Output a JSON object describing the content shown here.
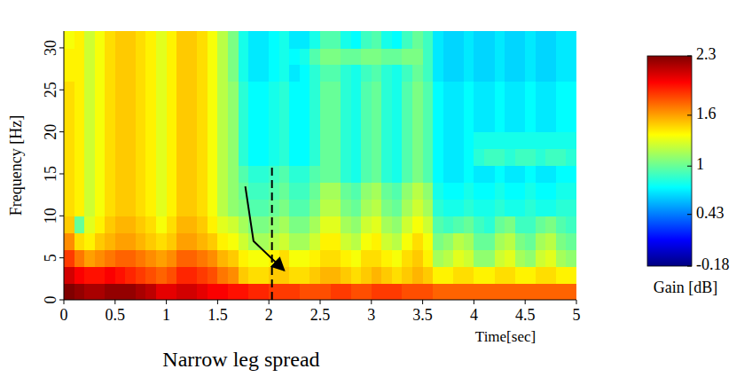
{
  "chart_data": {
    "type": "heatmap",
    "title": "Narrow leg spread",
    "x_label": "Time[sec]",
    "y_label": "Frequency [Hz]",
    "xlim": [
      0,
      5
    ],
    "ylim": [
      0,
      32
    ],
    "xticks": [
      0,
      0.5,
      1,
      1.5,
      2,
      2.5,
      3,
      3.5,
      4,
      4.5,
      5
    ],
    "yticks": [
      0,
      5,
      10,
      15,
      20,
      25,
      30
    ],
    "x": [
      0.05,
      0.15,
      0.25,
      0.35,
      0.45,
      0.55,
      0.65,
      0.75,
      0.85,
      0.95,
      1.05,
      1.15,
      1.25,
      1.35,
      1.45,
      1.55,
      1.65,
      1.75,
      1.85,
      1.95,
      2.05,
      2.15,
      2.25,
      2.35,
      2.45,
      2.55,
      2.65,
      2.75,
      2.85,
      2.95,
      3.05,
      3.15,
      3.25,
      3.35,
      3.45,
      3.55,
      3.65,
      3.75,
      3.85,
      3.95,
      4.05,
      4.15,
      4.25,
      4.35,
      4.45,
      4.55,
      4.65,
      4.75,
      4.85,
      4.95
    ],
    "y": [
      1,
      3,
      5,
      7,
      9,
      11,
      13,
      15,
      17,
      19,
      21,
      23,
      25,
      27,
      29,
      31
    ],
    "cells": [
      [
        2.3,
        2.25,
        2.2,
        2.2,
        2.25,
        2.25,
        2.25,
        2.2,
        2.15,
        2.05,
        2.05,
        2.1,
        2.1,
        2.05,
        2.0,
        2.0,
        1.95,
        1.95,
        1.9,
        1.9,
        1.85,
        1.85,
        1.85,
        1.8,
        1.8,
        1.8,
        1.85,
        1.85,
        1.8,
        1.8,
        1.85,
        1.85,
        1.85,
        1.8,
        1.8,
        1.8,
        1.75,
        1.75,
        1.75,
        1.75,
        1.75,
        1.75,
        1.75,
        1.75,
        1.75,
        1.75,
        1.75,
        1.75,
        1.75,
        1.75
      ],
      [
        2.1,
        2.0,
        1.95,
        1.95,
        2.0,
        1.95,
        1.9,
        1.85,
        1.8,
        1.75,
        1.8,
        1.9,
        1.9,
        1.85,
        1.8,
        1.7,
        1.65,
        1.5,
        1.45,
        1.45,
        1.5,
        1.5,
        1.45,
        1.45,
        1.5,
        1.55,
        1.55,
        1.5,
        1.45,
        1.5,
        1.55,
        1.5,
        1.45,
        1.5,
        1.55,
        1.5,
        1.4,
        1.4,
        1.45,
        1.45,
        1.4,
        1.4,
        1.45,
        1.45,
        1.4,
        1.4,
        1.45,
        1.45,
        1.4,
        1.4
      ],
      [
        1.85,
        1.7,
        1.6,
        1.65,
        1.7,
        1.75,
        1.75,
        1.7,
        1.65,
        1.6,
        1.65,
        1.75,
        1.75,
        1.7,
        1.65,
        1.55,
        1.5,
        1.4,
        1.35,
        1.35,
        1.4,
        1.45,
        1.35,
        1.35,
        1.4,
        1.45,
        1.45,
        1.4,
        1.35,
        1.45,
        1.45,
        1.4,
        1.35,
        1.45,
        1.5,
        1.4,
        1.15,
        1.2,
        1.3,
        1.25,
        1.1,
        1.1,
        1.25,
        1.3,
        1.15,
        1.1,
        1.25,
        1.3,
        1.15,
        1.1
      ],
      [
        1.65,
        1.45,
        1.4,
        1.5,
        1.55,
        1.6,
        1.6,
        1.55,
        1.5,
        1.45,
        1.5,
        1.6,
        1.6,
        1.55,
        1.5,
        1.4,
        1.35,
        1.25,
        1.15,
        1.15,
        1.2,
        1.25,
        1.15,
        1.15,
        1.25,
        1.4,
        1.4,
        1.25,
        1.2,
        1.35,
        1.4,
        1.25,
        1.2,
        1.35,
        1.45,
        1.35,
        1.05,
        1.1,
        1.2,
        1.15,
        1.0,
        1.0,
        1.15,
        1.2,
        1.05,
        1.0,
        1.15,
        1.2,
        1.05,
        1.0
      ],
      [
        1.5,
        1.0,
        1.3,
        1.4,
        1.5,
        1.55,
        1.55,
        1.5,
        1.45,
        1.35,
        1.45,
        1.55,
        1.55,
        1.5,
        1.4,
        1.3,
        1.25,
        1.15,
        1.05,
        1.05,
        1.1,
        1.15,
        1.05,
        1.05,
        1.15,
        1.3,
        1.3,
        1.15,
        1.1,
        1.25,
        1.3,
        1.15,
        1.1,
        1.25,
        1.35,
        1.25,
        0.95,
        0.9,
        0.95,
        1.0,
        0.9,
        0.85,
        1.0,
        1.05,
        0.9,
        0.9,
        1.0,
        1.05,
        0.95,
        0.9
      ],
      [
        1.45,
        1.4,
        1.25,
        1.35,
        1.45,
        1.5,
        1.5,
        1.45,
        1.4,
        1.3,
        1.4,
        1.5,
        1.5,
        1.45,
        1.35,
        1.2,
        1.1,
        1.05,
        0.95,
        0.95,
        1.0,
        1.05,
        0.95,
        0.95,
        1.05,
        1.2,
        1.2,
        1.05,
        1.0,
        1.15,
        1.2,
        1.05,
        1.0,
        1.15,
        1.25,
        1.15,
        0.85,
        0.8,
        0.8,
        0.85,
        0.8,
        0.8,
        0.85,
        0.8,
        0.8,
        0.85,
        0.8,
        0.8,
        0.85,
        0.85
      ],
      [
        1.45,
        1.4,
        1.25,
        1.35,
        1.45,
        1.5,
        1.5,
        1.45,
        1.4,
        1.3,
        1.4,
        1.5,
        1.5,
        1.45,
        1.35,
        1.2,
        1.1,
        1.0,
        0.9,
        0.9,
        0.95,
        1.0,
        0.9,
        0.9,
        1.0,
        1.15,
        1.15,
        1.0,
        0.95,
        1.1,
        1.15,
        1.0,
        0.95,
        1.1,
        1.2,
        1.1,
        0.8,
        0.75,
        0.75,
        0.8,
        0.75,
        0.75,
        0.8,
        0.75,
        0.75,
        0.8,
        0.75,
        0.75,
        0.8,
        0.8
      ],
      [
        1.45,
        1.4,
        1.25,
        1.35,
        1.45,
        1.5,
        1.5,
        1.45,
        1.4,
        1.3,
        1.4,
        1.5,
        1.5,
        1.45,
        1.35,
        1.2,
        1.1,
        0.95,
        0.85,
        0.85,
        0.9,
        0.95,
        0.85,
        0.85,
        0.95,
        1.0,
        1.0,
        0.85,
        0.8,
        0.95,
        1.0,
        0.85,
        0.8,
        0.95,
        1.05,
        0.95,
        0.75,
        0.7,
        0.7,
        0.75,
        0.7,
        0.7,
        0.75,
        0.7,
        0.7,
        0.75,
        0.7,
        0.7,
        0.75,
        0.75
      ],
      [
        1.45,
        1.4,
        1.25,
        1.35,
        1.45,
        1.5,
        1.5,
        1.45,
        1.4,
        1.3,
        1.4,
        1.5,
        1.5,
        1.45,
        1.35,
        1.2,
        1.1,
        0.85,
        0.75,
        0.75,
        0.8,
        0.85,
        0.75,
        0.75,
        0.85,
        1.0,
        1.0,
        0.85,
        0.8,
        0.95,
        1.0,
        0.85,
        0.8,
        0.95,
        1.05,
        0.95,
        0.75,
        0.7,
        0.7,
        0.75,
        0.85,
        0.9,
        0.9,
        0.85,
        0.9,
        0.9,
        0.85,
        0.9,
        0.9,
        0.85
      ],
      [
        1.45,
        1.4,
        1.25,
        1.35,
        1.45,
        1.5,
        1.5,
        1.45,
        1.4,
        1.3,
        1.4,
        1.5,
        1.5,
        1.45,
        1.35,
        1.2,
        1.1,
        0.85,
        0.75,
        0.75,
        0.8,
        0.85,
        0.75,
        0.75,
        0.85,
        1.0,
        1.0,
        0.85,
        0.8,
        0.95,
        1.0,
        0.85,
        0.8,
        0.95,
        1.05,
        0.95,
        0.75,
        0.7,
        0.7,
        0.75,
        0.8,
        0.8,
        0.8,
        0.8,
        0.8,
        0.8,
        0.8,
        0.8,
        0.8,
        0.8
      ],
      [
        1.45,
        1.4,
        1.25,
        1.35,
        1.45,
        1.5,
        1.5,
        1.45,
        1.4,
        1.3,
        1.4,
        1.5,
        1.5,
        1.45,
        1.35,
        1.2,
        1.1,
        0.85,
        0.75,
        0.75,
        0.8,
        0.85,
        0.75,
        0.75,
        0.85,
        1.0,
        1.0,
        0.85,
        0.8,
        0.95,
        1.0,
        0.85,
        0.8,
        0.95,
        1.05,
        0.95,
        0.75,
        0.7,
        0.7,
        0.75,
        0.7,
        0.7,
        0.75,
        0.7,
        0.7,
        0.75,
        0.7,
        0.7,
        0.75,
        0.75
      ],
      [
        1.45,
        1.4,
        1.25,
        1.35,
        1.45,
        1.5,
        1.5,
        1.45,
        1.4,
        1.3,
        1.4,
        1.5,
        1.5,
        1.45,
        1.35,
        1.2,
        1.1,
        0.85,
        0.75,
        0.75,
        0.8,
        0.85,
        0.75,
        0.75,
        0.85,
        1.0,
        1.0,
        0.85,
        0.8,
        0.95,
        1.0,
        0.85,
        0.8,
        0.95,
        1.05,
        0.95,
        0.75,
        0.7,
        0.7,
        0.75,
        0.7,
        0.7,
        0.75,
        0.7,
        0.7,
        0.75,
        0.7,
        0.7,
        0.75,
        0.75
      ],
      [
        1.45,
        1.4,
        1.25,
        1.35,
        1.45,
        1.5,
        1.5,
        1.45,
        1.4,
        1.3,
        1.4,
        1.5,
        1.5,
        1.45,
        1.35,
        1.2,
        1.1,
        0.85,
        0.75,
        0.75,
        0.8,
        0.85,
        0.75,
        0.75,
        0.85,
        1.0,
        1.0,
        0.85,
        0.8,
        0.95,
        1.0,
        0.85,
        0.8,
        0.95,
        1.05,
        0.95,
        0.75,
        0.7,
        0.7,
        0.75,
        0.7,
        0.7,
        0.75,
        0.7,
        0.7,
        0.75,
        0.7,
        0.7,
        0.75,
        0.75
      ],
      [
        1.4,
        1.4,
        1.25,
        1.35,
        1.45,
        1.5,
        1.5,
        1.45,
        1.4,
        1.3,
        1.4,
        1.5,
        1.5,
        1.45,
        1.35,
        1.2,
        1.05,
        0.8,
        0.7,
        0.7,
        0.75,
        0.8,
        0.7,
        0.75,
        0.85,
        0.95,
        0.95,
        0.85,
        0.8,
        0.9,
        0.95,
        0.85,
        0.8,
        0.9,
        1.0,
        0.9,
        0.7,
        0.65,
        0.65,
        0.7,
        0.65,
        0.65,
        0.7,
        0.65,
        0.65,
        0.7,
        0.65,
        0.65,
        0.7,
        0.7
      ],
      [
        1.4,
        1.4,
        1.25,
        1.35,
        1.45,
        1.5,
        1.5,
        1.45,
        1.4,
        1.3,
        1.4,
        1.5,
        1.5,
        1.45,
        1.35,
        1.2,
        1.05,
        0.8,
        0.7,
        0.7,
        0.75,
        0.8,
        0.75,
        0.8,
        0.95,
        1.05,
        1.05,
        1.0,
        1.0,
        1.05,
        1.05,
        1.0,
        1.0,
        1.05,
        1.05,
        0.9,
        0.7,
        0.65,
        0.65,
        0.7,
        0.65,
        0.65,
        0.7,
        0.65,
        0.65,
        0.7,
        0.65,
        0.65,
        0.7,
        0.7
      ],
      [
        1.35,
        1.4,
        1.25,
        1.35,
        1.45,
        1.5,
        1.5,
        1.45,
        1.4,
        1.3,
        1.4,
        1.5,
        1.5,
        1.45,
        1.35,
        1.2,
        1.05,
        0.8,
        0.7,
        0.7,
        0.75,
        0.8,
        0.7,
        0.7,
        0.8,
        0.95,
        0.95,
        0.8,
        0.75,
        0.9,
        0.95,
        0.8,
        0.75,
        0.9,
        1.0,
        0.9,
        0.7,
        0.65,
        0.65,
        0.7,
        0.65,
        0.65,
        0.7,
        0.65,
        0.65,
        0.7,
        0.65,
        0.65,
        0.7,
        0.7
      ]
    ],
    "colorbar": {
      "range": [
        -0.18,
        2.3
      ],
      "ticks": [
        -0.18,
        0.43,
        1,
        1.6,
        2.3
      ],
      "label": "Gain [dB]"
    },
    "annotations": [
      {
        "type": "dashed_line",
        "x": [
          2.03,
          2.03
        ],
        "y": [
          0,
          16
        ]
      },
      {
        "type": "arrow",
        "x": [
          1.77,
          1.85,
          2.15
        ],
        "y": [
          13.5,
          7,
          3.5
        ]
      }
    ]
  }
}
